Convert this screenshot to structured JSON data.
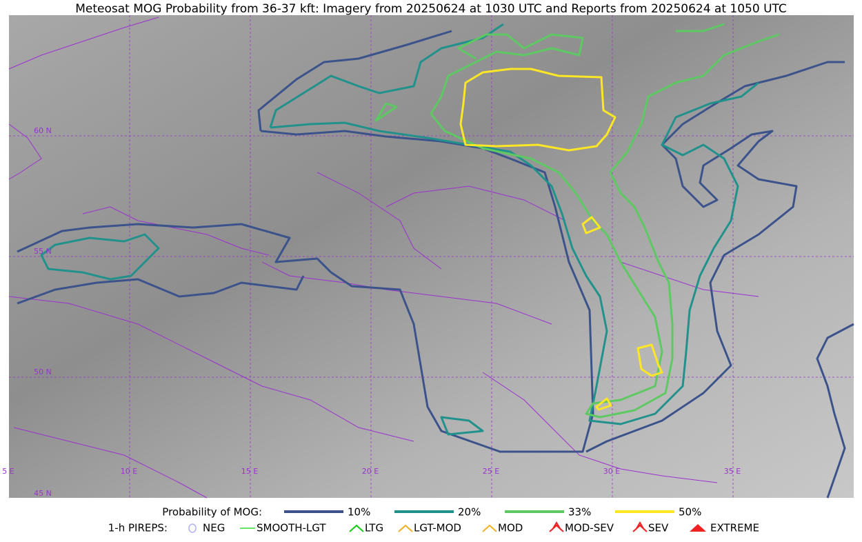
{
  "header": {
    "title": "Meteosat MOG Probability from 36-37 kft: Imagery from 20250624 at 1030 UTC and Reports from 20250624 at 1050 UTC"
  },
  "map": {
    "lat_labels": [
      "60 N",
      "55 N",
      "50 N",
      "45 N"
    ],
    "lon_labels": [
      "5 E",
      "10 E",
      "15 E",
      "20 E",
      "25 E",
      "30 E",
      "35 E"
    ]
  },
  "legend": {
    "probability_title": "Probability of MOG:",
    "probability": [
      {
        "label": "10%",
        "color": "#3b528b"
      },
      {
        "label": "20%",
        "color": "#21918c"
      },
      {
        "label": "33%",
        "color": "#5ec962"
      },
      {
        "label": "50%",
        "color": "#fde725"
      }
    ],
    "pireps_title": "1-h PIREPS:",
    "pireps": [
      {
        "label": "NEG",
        "color": "#b0b0ff"
      },
      {
        "label": "SMOOTH-LGT",
        "color": "#33dd33"
      },
      {
        "label": "LTG",
        "color": "#11cc11"
      },
      {
        "label": "LGT-MOD",
        "color": "#f0b020"
      },
      {
        "label": "MOD",
        "color": "#f0b020"
      },
      {
        "label": "MOD-SEV",
        "color": "#ee2222"
      },
      {
        "label": "SEV",
        "color": "#ee2222"
      },
      {
        "label": "EXTREME",
        "color": "#ee2222"
      }
    ]
  }
}
